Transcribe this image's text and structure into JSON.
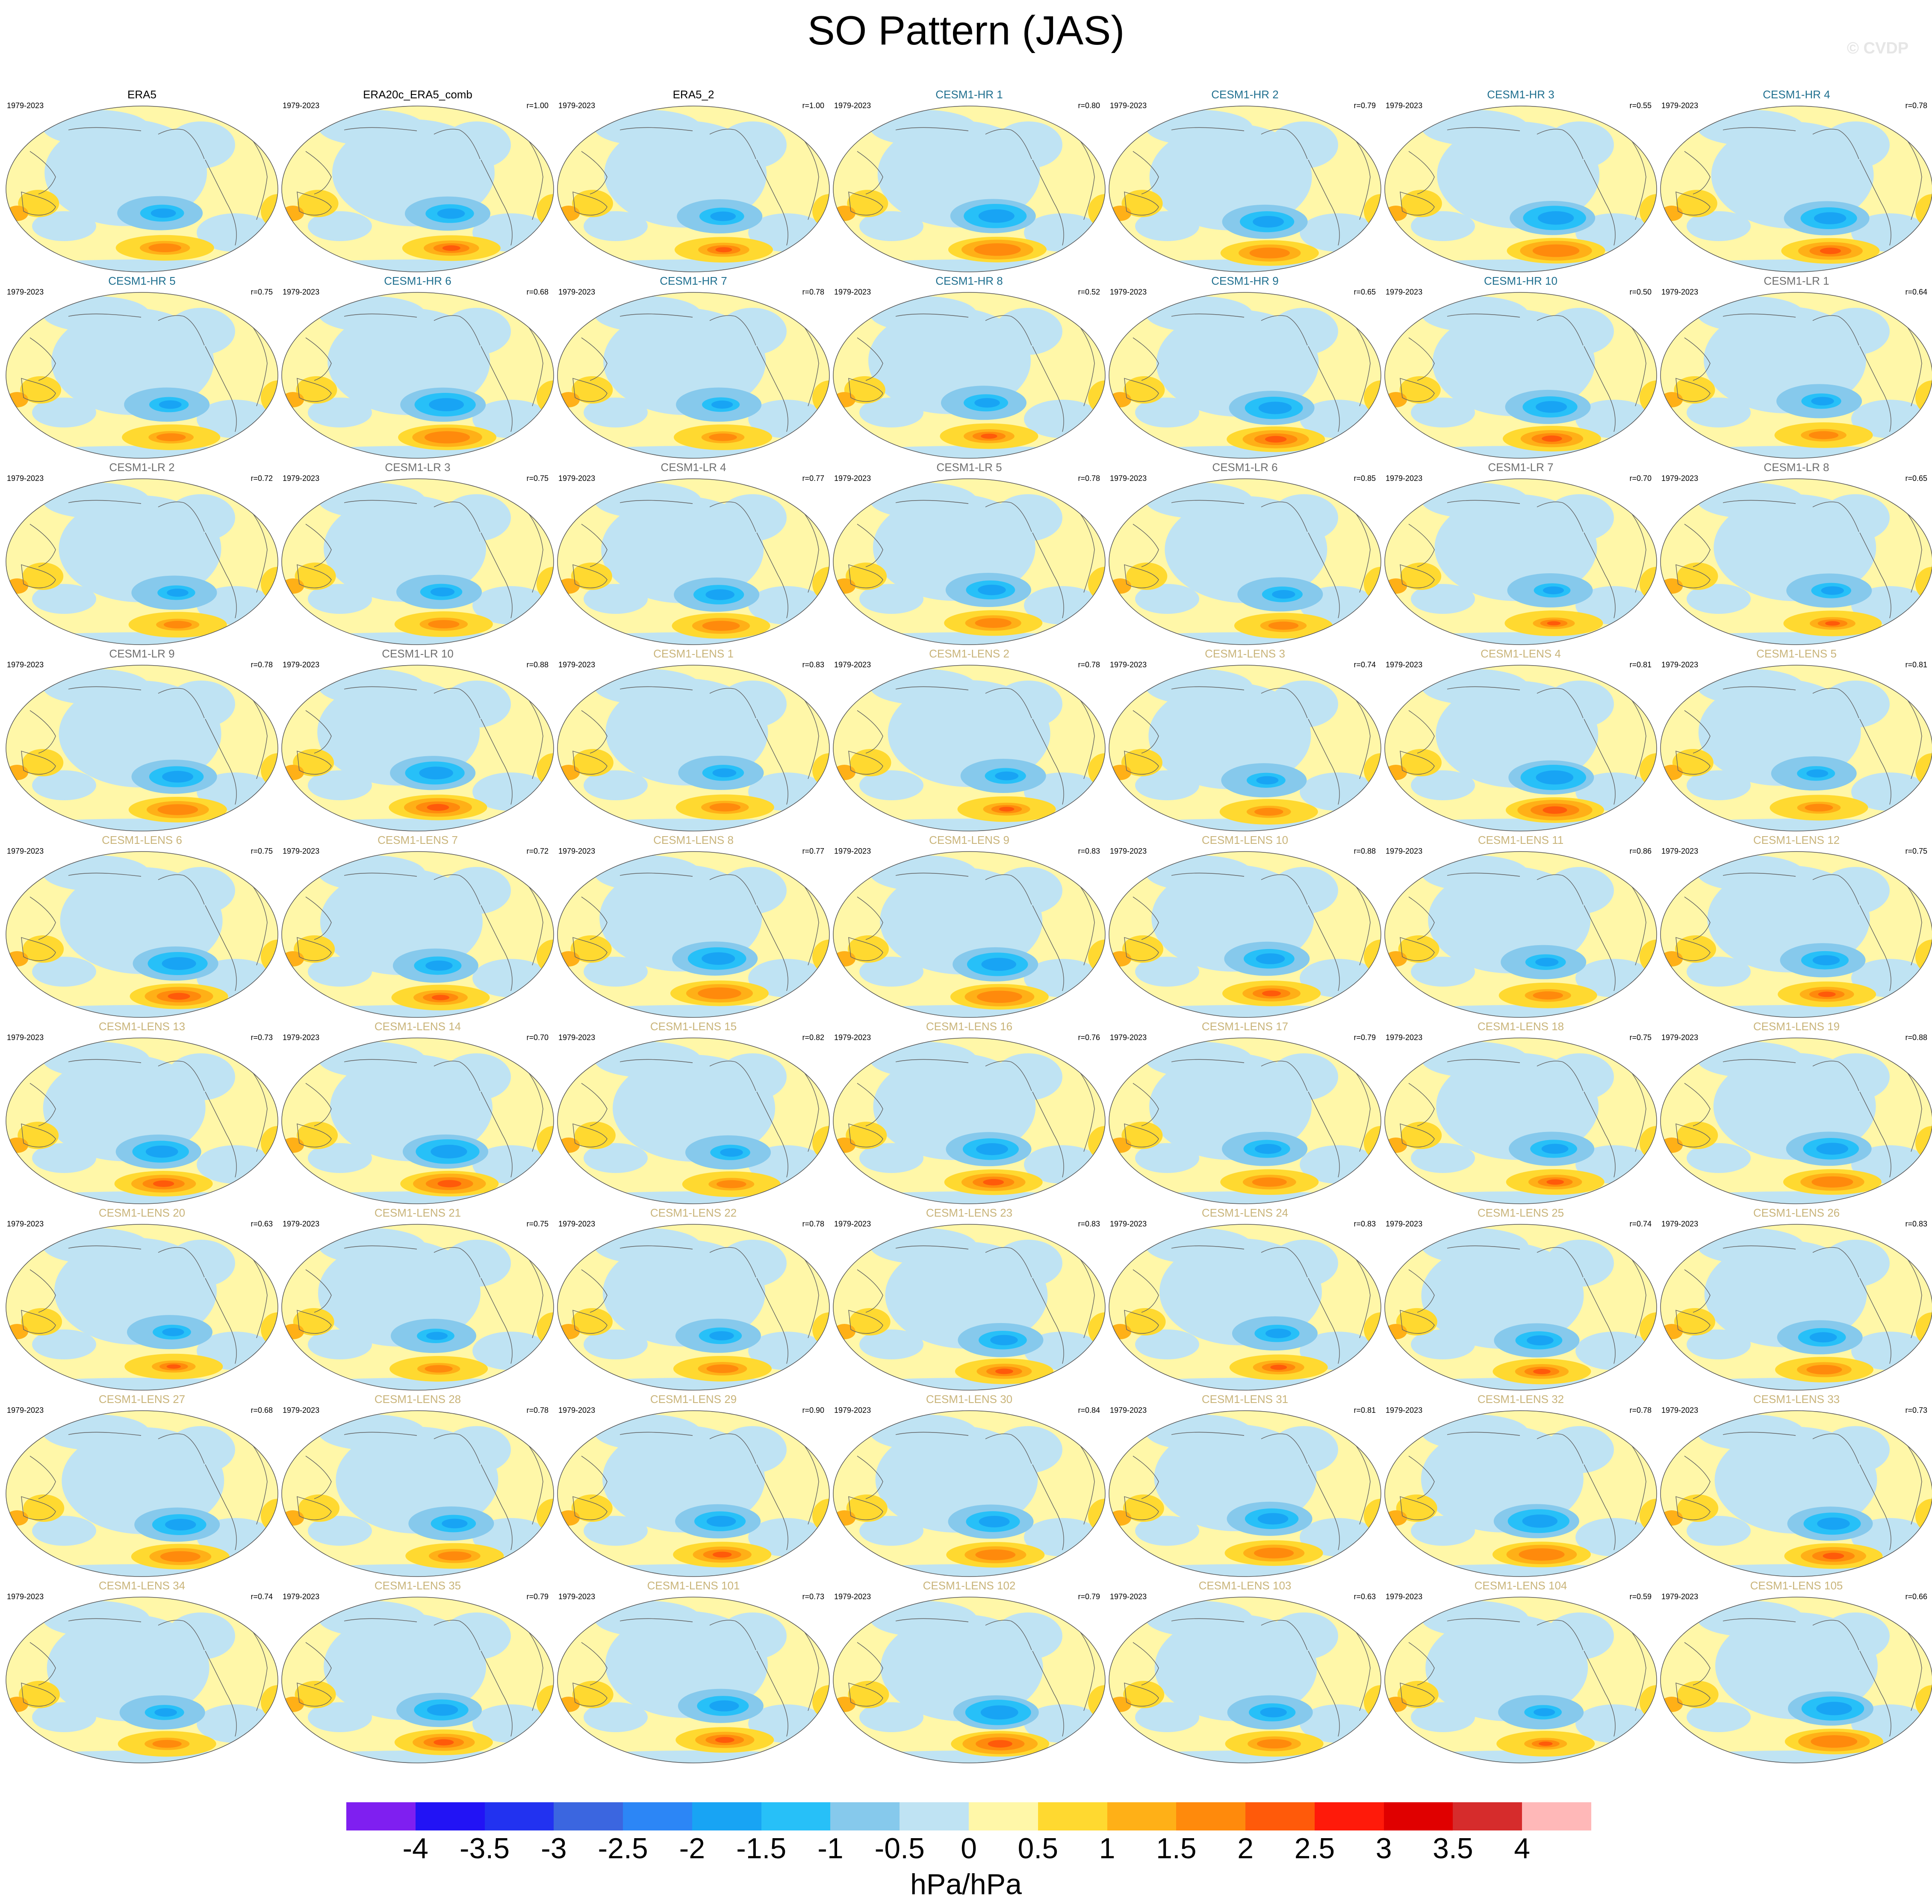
{
  "title": "SO Pattern (JAS)",
  "watermark": "© CVDP",
  "units": "hPa/hPa",
  "colors": {
    "obs_title": "#000000",
    "hr_title": "#1f6f8f",
    "lr_title": "#6f6f6f",
    "lens_title": "#c9b47a",
    "map_outline": "#555555",
    "coast": "#606060"
  },
  "colorbar": {
    "colors": [
      "#7f1ff0",
      "#2213f5",
      "#2232f0",
      "#3b66e0",
      "#2c86f6",
      "#18a4f4",
      "#27c0f8",
      "#86c9ec",
      "#bfe3f3",
      "#fff7a8",
      "#ffd930",
      "#ffb017",
      "#ff8a0c",
      "#ff5a0a",
      "#ff1a0a",
      "#e00000",
      "#d62c2c",
      "#ffb8b8"
    ],
    "labels": [
      "-4",
      "-3.5",
      "-3",
      "-2.5",
      "-2",
      "-1.5",
      "-1",
      "-0.5",
      "0",
      "0.5",
      "1",
      "1.5",
      "2",
      "2.5",
      "3",
      "3.5",
      "4"
    ]
  },
  "panels": [
    {
      "title": "ERA5",
      "group": "obs",
      "years": "1979-2023",
      "corr": ""
    },
    {
      "title": "ERA20c_ERA5_comb",
      "group": "obs",
      "years": "1979-2023",
      "corr": "r=1.00"
    },
    {
      "title": "ERA5_2",
      "group": "obs",
      "years": "1979-2023",
      "corr": "r=1.00"
    },
    {
      "title": "CESM1-HR 1",
      "group": "hr",
      "years": "1979-2023",
      "corr": "r=0.80"
    },
    {
      "title": "CESM1-HR 2",
      "group": "hr",
      "years": "1979-2023",
      "corr": "r=0.79"
    },
    {
      "title": "CESM1-HR 3",
      "group": "hr",
      "years": "1979-2023",
      "corr": "r=0.55"
    },
    {
      "title": "CESM1-HR 4",
      "group": "hr",
      "years": "1979-2023",
      "corr": "r=0.78"
    },
    {
      "title": "CESM1-HR 5",
      "group": "hr",
      "years": "1979-2023",
      "corr": "r=0.75"
    },
    {
      "title": "CESM1-HR 6",
      "group": "hr",
      "years": "1979-2023",
      "corr": "r=0.68"
    },
    {
      "title": "CESM1-HR 7",
      "group": "hr",
      "years": "1979-2023",
      "corr": "r=0.78"
    },
    {
      "title": "CESM1-HR 8",
      "group": "hr",
      "years": "1979-2023",
      "corr": "r=0.52"
    },
    {
      "title": "CESM1-HR 9",
      "group": "hr",
      "years": "1979-2023",
      "corr": "r=0.65"
    },
    {
      "title": "CESM1-HR 10",
      "group": "hr",
      "years": "1979-2023",
      "corr": "r=0.50"
    },
    {
      "title": "CESM1-LR 1",
      "group": "lr",
      "years": "1979-2023",
      "corr": "r=0.64"
    },
    {
      "title": "CESM1-LR 2",
      "group": "lr",
      "years": "1979-2023",
      "corr": "r=0.72"
    },
    {
      "title": "CESM1-LR 3",
      "group": "lr",
      "years": "1979-2023",
      "corr": "r=0.75"
    },
    {
      "title": "CESM1-LR 4",
      "group": "lr",
      "years": "1979-2023",
      "corr": "r=0.77"
    },
    {
      "title": "CESM1-LR 5",
      "group": "lr",
      "years": "1979-2023",
      "corr": "r=0.78"
    },
    {
      "title": "CESM1-LR 6",
      "group": "lr",
      "years": "1979-2023",
      "corr": "r=0.85"
    },
    {
      "title": "CESM1-LR 7",
      "group": "lr",
      "years": "1979-2023",
      "corr": "r=0.70"
    },
    {
      "title": "CESM1-LR 8",
      "group": "lr",
      "years": "1979-2023",
      "corr": "r=0.65"
    },
    {
      "title": "CESM1-LR 9",
      "group": "lr",
      "years": "1979-2023",
      "corr": "r=0.78"
    },
    {
      "title": "CESM1-LR 10",
      "group": "lr",
      "years": "1979-2023",
      "corr": "r=0.88"
    },
    {
      "title": "CESM1-LENS 1",
      "group": "lens",
      "years": "1979-2023",
      "corr": "r=0.83"
    },
    {
      "title": "CESM1-LENS 2",
      "group": "lens",
      "years": "1979-2023",
      "corr": "r=0.78"
    },
    {
      "title": "CESM1-LENS 3",
      "group": "lens",
      "years": "1979-2023",
      "corr": "r=0.74"
    },
    {
      "title": "CESM1-LENS 4",
      "group": "lens",
      "years": "1979-2023",
      "corr": "r=0.81"
    },
    {
      "title": "CESM1-LENS 5",
      "group": "lens",
      "years": "1979-2023",
      "corr": "r=0.81"
    },
    {
      "title": "CESM1-LENS 6",
      "group": "lens",
      "years": "1979-2023",
      "corr": "r=0.75"
    },
    {
      "title": "CESM1-LENS 7",
      "group": "lens",
      "years": "1979-2023",
      "corr": "r=0.72"
    },
    {
      "title": "CESM1-LENS 8",
      "group": "lens",
      "years": "1979-2023",
      "corr": "r=0.77"
    },
    {
      "title": "CESM1-LENS 9",
      "group": "lens",
      "years": "1979-2023",
      "corr": "r=0.83"
    },
    {
      "title": "CESM1-LENS 10",
      "group": "lens",
      "years": "1979-2023",
      "corr": "r=0.88"
    },
    {
      "title": "CESM1-LENS 11",
      "group": "lens",
      "years": "1979-2023",
      "corr": "r=0.86"
    },
    {
      "title": "CESM1-LENS 12",
      "group": "lens",
      "years": "1979-2023",
      "corr": "r=0.75"
    },
    {
      "title": "CESM1-LENS 13",
      "group": "lens",
      "years": "1979-2023",
      "corr": "r=0.73"
    },
    {
      "title": "CESM1-LENS 14",
      "group": "lens",
      "years": "1979-2023",
      "corr": "r=0.70"
    },
    {
      "title": "CESM1-LENS 15",
      "group": "lens",
      "years": "1979-2023",
      "corr": "r=0.82"
    },
    {
      "title": "CESM1-LENS 16",
      "group": "lens",
      "years": "1979-2023",
      "corr": "r=0.76"
    },
    {
      "title": "CESM1-LENS 17",
      "group": "lens",
      "years": "1979-2023",
      "corr": "r=0.79"
    },
    {
      "title": "CESM1-LENS 18",
      "group": "lens",
      "years": "1979-2023",
      "corr": "r=0.75"
    },
    {
      "title": "CESM1-LENS 19",
      "group": "lens",
      "years": "1979-2023",
      "corr": "r=0.88"
    },
    {
      "title": "CESM1-LENS 20",
      "group": "lens",
      "years": "1979-2023",
      "corr": "r=0.63"
    },
    {
      "title": "CESM1-LENS 21",
      "group": "lens",
      "years": "1979-2023",
      "corr": "r=0.75"
    },
    {
      "title": "CESM1-LENS 22",
      "group": "lens",
      "years": "1979-2023",
      "corr": "r=0.78"
    },
    {
      "title": "CESM1-LENS 23",
      "group": "lens",
      "years": "1979-2023",
      "corr": "r=0.83"
    },
    {
      "title": "CESM1-LENS 24",
      "group": "lens",
      "years": "1979-2023",
      "corr": "r=0.83"
    },
    {
      "title": "CESM1-LENS 25",
      "group": "lens",
      "years": "1979-2023",
      "corr": "r=0.74"
    },
    {
      "title": "CESM1-LENS 26",
      "group": "lens",
      "years": "1979-2023",
      "corr": "r=0.83"
    },
    {
      "title": "CESM1-LENS 27",
      "group": "lens",
      "years": "1979-2023",
      "corr": "r=0.68"
    },
    {
      "title": "CESM1-LENS 28",
      "group": "lens",
      "years": "1979-2023",
      "corr": "r=0.78"
    },
    {
      "title": "CESM1-LENS 29",
      "group": "lens",
      "years": "1979-2023",
      "corr": "r=0.90"
    },
    {
      "title": "CESM1-LENS 30",
      "group": "lens",
      "years": "1979-2023",
      "corr": "r=0.84"
    },
    {
      "title": "CESM1-LENS 31",
      "group": "lens",
      "years": "1979-2023",
      "corr": "r=0.81"
    },
    {
      "title": "CESM1-LENS 32",
      "group": "lens",
      "years": "1979-2023",
      "corr": "r=0.78"
    },
    {
      "title": "CESM1-LENS 33",
      "group": "lens",
      "years": "1979-2023",
      "corr": "r=0.73"
    },
    {
      "title": "CESM1-LENS 34",
      "group": "lens",
      "years": "1979-2023",
      "corr": "r=0.74"
    },
    {
      "title": "CESM1-LENS 35",
      "group": "lens",
      "years": "1979-2023",
      "corr": "r=0.79"
    },
    {
      "title": "CESM1-LENS 101",
      "group": "lens",
      "years": "1979-2023",
      "corr": "r=0.73"
    },
    {
      "title": "CESM1-LENS 102",
      "group": "lens",
      "years": "1979-2023",
      "corr": "r=0.79"
    },
    {
      "title": "CESM1-LENS 103",
      "group": "lens",
      "years": "1979-2023",
      "corr": "r=0.63"
    },
    {
      "title": "CESM1-LENS 104",
      "group": "lens",
      "years": "1979-2023",
      "corr": "r=0.59"
    },
    {
      "title": "CESM1-LENS 105",
      "group": "lens",
      "years": "1979-2023",
      "corr": "r=0.66"
    }
  ]
}
